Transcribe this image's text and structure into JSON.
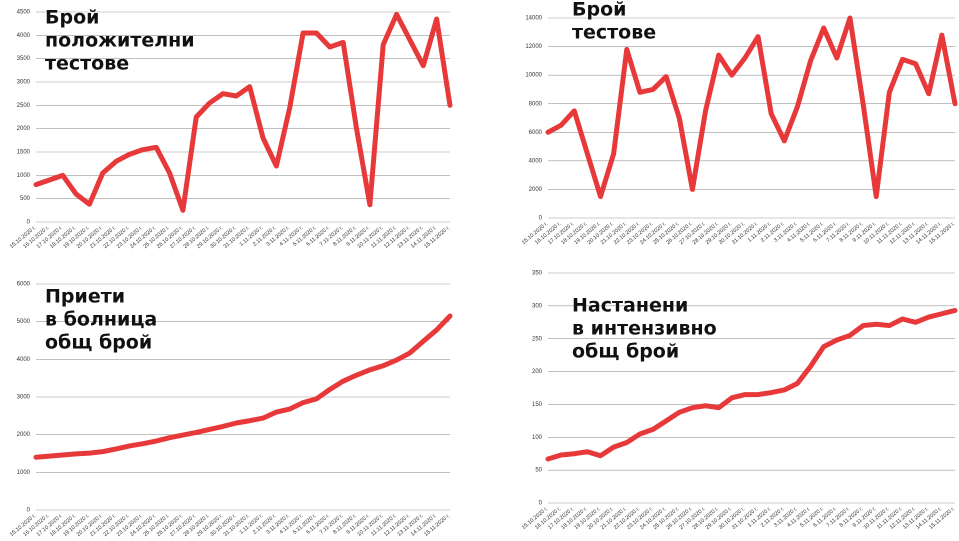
{
  "chart_data": [
    {
      "type": "line",
      "title": [
        "Брой",
        "положителни",
        "тестове"
      ],
      "categories": [
        "15.10.2020 г.",
        "16.10.2020 г.",
        "17.10.2020 г.",
        "18.10.2020 г.",
        "19.10.2020 г.",
        "20.10.2020 г.",
        "21.10.2020 г.",
        "22.10.2020 г.",
        "23.10.2020 г.",
        "24.10.2020 г.",
        "25.10.2020 г.",
        "26.10.2020 г.",
        "27.10.2020 г.",
        "28.10.2020 г.",
        "29.10.2020 г.",
        "30.10.2020 г.",
        "31.10.2020 г.",
        "1.11.2020 г.",
        "2.11.2020 г.",
        "3.11.2020 г.",
        "4.11.2020 г.",
        "5.11.2020 г.",
        "6.11.2020 г.",
        "7.11.2020 г.",
        "8.11.2020 г.",
        "9.11.2020 г.",
        "10.11.2020 г.",
        "11.11.2020 г.",
        "12.11.2020 г.",
        "13.11.2020 г.",
        "14.11.2020 г.",
        "15.11.2020 г."
      ],
      "values": [
        800,
        900,
        1000,
        600,
        380,
        1050,
        1300,
        1450,
        1550,
        1600,
        1050,
        250,
        2250,
        2550,
        2750,
        2700,
        2900,
        1800,
        1200,
        2450,
        4050,
        4050,
        3750,
        3850,
        2000,
        370,
        3800,
        4450,
        3900,
        3350,
        4350,
        2500
      ],
      "color": "#e8393a",
      "ylim": [
        0,
        4500
      ],
      "yticks": [
        0,
        500,
        1000,
        1500,
        2000,
        2500,
        3000,
        3500,
        4000,
        4500
      ],
      "grid": true
    },
    {
      "type": "line",
      "title": [
        "Брой",
        "тестове"
      ],
      "categories": [
        "15.10.2020 г.",
        "16.10.2020 г.",
        "17.10.2020 г.",
        "18.10.2020 г.",
        "19.10.2020 г.",
        "20.10.2020 г.",
        "21.10.2020 г.",
        "22.10.2020 г.",
        "23.10.2020 г.",
        "24.10.2020 г.",
        "25.10.2020 г.",
        "26.10.2020 г.",
        "27.10.2020 г.",
        "28.10.2020 г.",
        "29.10.2020 г.",
        "30.10.2020 г.",
        "31.10.2020 г.",
        "1.11.2020 г.",
        "2.11.2020 г.",
        "3.11.2020 г.",
        "4.11.2020 г.",
        "5.11.2020 г.",
        "6.11.2020 г.",
        "7.11.2020 г.",
        "8.11.2020 г.",
        "9.11.2020 г.",
        "10.11.2020 г.",
        "11.11.2020 г.",
        "12.11.2020 г.",
        "13.11.2020 г.",
        "14.11.2020 г.",
        "15.11.2020 г."
      ],
      "values": [
        6000,
        6500,
        7500,
        4500,
        1500,
        4500,
        11800,
        8800,
        9000,
        9900,
        7000,
        2000,
        7500,
        11400,
        10000,
        11200,
        12700,
        7300,
        5400,
        7800,
        11000,
        13300,
        11200,
        14000,
        8000,
        1500,
        8800,
        11100,
        10800,
        8700,
        12800,
        8000
      ],
      "color": "#e8393a",
      "ylim": [
        0,
        14000
      ],
      "yticks": [
        0,
        2000,
        4000,
        6000,
        8000,
        10000,
        12000,
        14000
      ],
      "grid": true
    },
    {
      "type": "line",
      "title": [
        "Приети",
        "в болница",
        "общ брой"
      ],
      "categories": [
        "15.10.2020 г.",
        "16.10.2020 г.",
        "17.10.2020 г.",
        "18.10.2020 г.",
        "19.10.2020 г.",
        "20.10.2020 г.",
        "21.10.2020 г.",
        "22.10.2020 г.",
        "23.10.2020 г.",
        "24.10.2020 г.",
        "25.10.2020 г.",
        "26.10.2020 г.",
        "27.10.2020 г.",
        "28.10.2020 г.",
        "29.10.2020 г.",
        "30.10.2020 г.",
        "31.10.2020 г.",
        "1.11.2020 г.",
        "2.11.2020 г.",
        "3.11.2020 г.",
        "4.11.2020 г.",
        "5.11.2020 г.",
        "6.11.2020 г.",
        "7.11.2020 г.",
        "8.11.2020 г.",
        "9.11.2020 г.",
        "10.11.2020 г.",
        "11.11.2020 г.",
        "12.11.2020 г.",
        "13.11.2020 г.",
        "14.11.2020 г.",
        "15.11.2020 г."
      ],
      "values": [
        1400,
        1430,
        1460,
        1490,
        1510,
        1550,
        1620,
        1700,
        1760,
        1830,
        1920,
        1990,
        2060,
        2140,
        2220,
        2310,
        2370,
        2440,
        2600,
        2680,
        2850,
        2950,
        3200,
        3420,
        3580,
        3720,
        3830,
        3980,
        4170,
        4480,
        4780,
        5150
      ],
      "color": "#e8393a",
      "ylim": [
        0,
        6000
      ],
      "yticks": [
        0,
        1000,
        2000,
        3000,
        4000,
        5000,
        6000
      ],
      "grid": true
    },
    {
      "type": "line",
      "title": [
        "Настанени",
        "в интензивно",
        "общ брой"
      ],
      "categories": [
        "15.10.2020 г.",
        "16.10.2020 г.",
        "17.10.2020 г.",
        "18.10.2020 г.",
        "19.10.2020 г.",
        "20.10.2020 г.",
        "21.10.2020 г.",
        "22.10.2020 г.",
        "23.10.2020 г.",
        "24.10.2020 г.",
        "25.10.2020 г.",
        "26.10.2020 г.",
        "27.10.2020 г.",
        "28.10.2020 г.",
        "29.10.2020 г.",
        "30.10.2020 г.",
        "31.10.2020 г.",
        "1.11.2020 г.",
        "2.11.2020 г.",
        "3.11.2020 г.",
        "4.11.2020 г.",
        "5.11.2020 г.",
        "6.11.2020 г.",
        "7.11.2020 г.",
        "8.11.2020 г.",
        "9.11.2020 г.",
        "10.11.2020 г.",
        "11.11.2020 г.",
        "12.11.2020 г.",
        "13.11.2020 г.",
        "14.11.2020 г.",
        "15.11.2020 г."
      ],
      "values": [
        67,
        73,
        75,
        78,
        72,
        85,
        92,
        105,
        112,
        125,
        138,
        145,
        148,
        145,
        160,
        165,
        165,
        168,
        172,
        182,
        208,
        238,
        248,
        255,
        270,
        272,
        270,
        280,
        275,
        283,
        288,
        293
      ],
      "color": "#e8393a",
      "ylim": [
        0,
        350
      ],
      "yticks": [
        0,
        50,
        100,
        150,
        200,
        250,
        300,
        350
      ],
      "grid": true
    }
  ]
}
